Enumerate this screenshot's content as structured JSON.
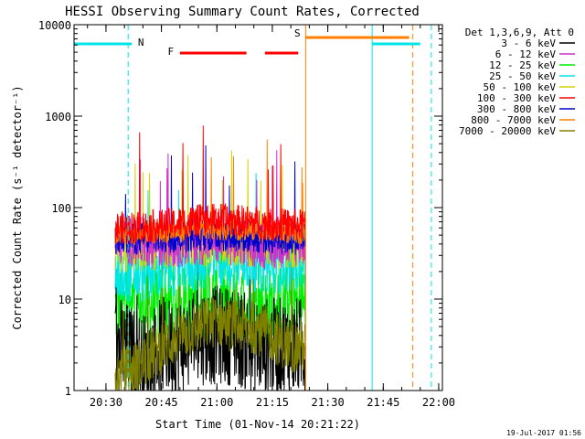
{
  "chart_data": {
    "type": "line",
    "title": "HESSI Observing Summary Count Rates, Corrected",
    "xlabel": "Start Time (01-Nov-14 20:21:22)",
    "ylabel": "Corrected Count Rate (s⁻¹ detector⁻¹)",
    "y_scale": "log",
    "ylim": [
      1,
      10000
    ],
    "xlim": [
      "20:21:22",
      "22:01:00"
    ],
    "x_ticks": [
      "20:30",
      "20:45",
      "21:00",
      "21:15",
      "21:30",
      "21:45",
      "22:00"
    ],
    "y_ticks": [
      "1",
      "10",
      "100",
      "1000",
      "10000"
    ],
    "legend_header": "Det 1,3,6,9, Att 0",
    "legend_position": "top-right, outside plot",
    "series": [
      {
        "name": "3 - 6 keV",
        "color": "#000000",
        "x": [
          "20:34",
          "20:40",
          "20:45",
          "20:50",
          "20:55",
          "21:00",
          "21:05",
          "21:10",
          "21:15",
          "21:20",
          "21:24"
        ],
        "y": [
          3,
          2,
          3,
          3,
          4,
          4,
          4,
          3,
          3,
          3,
          3
        ]
      },
      {
        "name": "6 - 12 keV",
        "color": "#cc33cc",
        "x": [
          "20:34",
          "20:40",
          "20:45",
          "20:50",
          "20:55",
          "21:00",
          "21:05",
          "21:10",
          "21:15",
          "21:20",
          "21:24"
        ],
        "y": [
          45,
          42,
          40,
          42,
          45,
          44,
          43,
          42,
          40,
          42,
          44
        ]
      },
      {
        "name": "12 - 25 keV",
        "color": "#00ee00",
        "x": [
          "20:34",
          "20:40",
          "20:45",
          "20:50",
          "20:55",
          "21:00",
          "21:05",
          "21:10",
          "21:15",
          "21:20",
          "21:24"
        ],
        "y": [
          8,
          8,
          9,
          9,
          10,
          9,
          9,
          8,
          8,
          9,
          9
        ]
      },
      {
        "name": "25 - 50 keV",
        "color": "#00e5e5",
        "x": [
          "20:34",
          "20:40",
          "20:45",
          "20:50",
          "20:55",
          "21:00",
          "21:05",
          "21:10",
          "21:15",
          "21:20",
          "21:24"
        ],
        "y": [
          18,
          18,
          20,
          22,
          24,
          26,
          25,
          24,
          23,
          24,
          25
        ]
      },
      {
        "name": "50 - 100 keV",
        "color": "#d4d400",
        "x": [
          "20:34",
          "20:40",
          "20:45",
          "20:50",
          "20:55",
          "21:00",
          "21:05",
          "21:10",
          "21:15",
          "21:20",
          "21:24"
        ],
        "y": [
          35,
          35,
          36,
          38,
          40,
          40,
          39,
          38,
          37,
          38,
          40
        ]
      },
      {
        "name": "100 - 300 keV",
        "color": "#ff0000",
        "x": [
          "20:34",
          "20:40",
          "20:45",
          "20:50",
          "20:55",
          "21:00",
          "21:05",
          "21:10",
          "21:15",
          "21:20",
          "21:24"
        ],
        "y": [
          60,
          62,
          64,
          68,
          72,
          75,
          72,
          70,
          66,
          65,
          64
        ]
      },
      {
        "name": "300 - 800 keV",
        "color": "#0000cc",
        "x": [
          "20:34",
          "20:40",
          "20:45",
          "20:50",
          "20:55",
          "21:00",
          "21:05",
          "21:10",
          "21:15",
          "21:20",
          "21:24"
        ],
        "y": [
          45,
          46,
          47,
          48,
          50,
          50,
          49,
          48,
          47,
          46,
          45
        ]
      },
      {
        "name": "800 - 7000 keV",
        "color": "#ff8000",
        "x": [
          "20:34",
          "20:40",
          "20:45",
          "20:50",
          "20:55",
          "21:00",
          "21:05",
          "21:10",
          "21:15",
          "21:20",
          "21:24"
        ],
        "y": [
          50,
          52,
          54,
          56,
          58,
          58,
          57,
          56,
          54,
          53,
          52
        ]
      },
      {
        "name": "7000 - 20000 keV",
        "color": "#808000",
        "x": [
          "20:34",
          "20:40",
          "20:45",
          "20:50",
          "20:55",
          "21:00",
          "21:05",
          "21:10",
          "21:15",
          "21:20",
          "21:24"
        ],
        "y": [
          1.5,
          2,
          3,
          4,
          5,
          6,
          5,
          5,
          4,
          3,
          3
        ]
      }
    ],
    "flag_bars": [
      {
        "label": "N",
        "color": "#00e5e5",
        "segments": [
          [
            "20:21:22",
            "20:37"
          ],
          [
            "21:42",
            "21:55"
          ]
        ]
      },
      {
        "label": "F",
        "color": "#ff0000",
        "segments": [
          [
            "20:50",
            "21:08"
          ],
          [
            "21:13",
            "21:22"
          ]
        ]
      },
      {
        "label": "S",
        "color": "#ff8000",
        "segments": [
          [
            "21:24",
            "21:52"
          ]
        ]
      }
    ],
    "vertical_lines": [
      {
        "x": "20:36",
        "color": "#00e5e5",
        "style": "dashed"
      },
      {
        "x": "21:24",
        "color": "#ff8000",
        "style": "solid"
      },
      {
        "x": "21:42",
        "color": "#00e5e5",
        "style": "solid"
      },
      {
        "x": "21:53",
        "color": "#ff8000",
        "style": "dashed"
      },
      {
        "x": "21:58",
        "color": "#00e5e5",
        "style": "dashed"
      }
    ],
    "data_window": [
      "20:32:30",
      "21:24"
    ]
  },
  "footer": {
    "date_stamp": "19-Jul-2017 01:56"
  }
}
